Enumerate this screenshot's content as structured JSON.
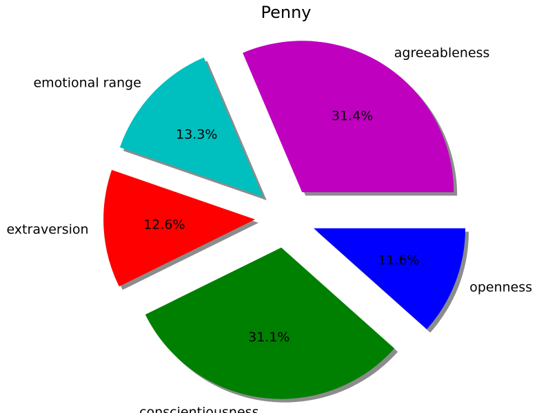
{
  "chart_data": {
    "type": "pie",
    "title": "Penny",
    "slices": [
      {
        "label": "agreeableness",
        "value": 31.4,
        "pct_label": "31.4%",
        "color": "#bf00bf",
        "exploded": true
      },
      {
        "label": "emotional range",
        "value": 13.3,
        "pct_label": "13.3%",
        "color": "#00bfbf",
        "exploded": true
      },
      {
        "label": "extraversion",
        "value": 12.6,
        "pct_label": "12.6%",
        "color": "#ff0000",
        "exploded": true
      },
      {
        "label": "conscientiousness",
        "value": 31.1,
        "pct_label": "31.1%",
        "color": "#008000",
        "exploded": true
      },
      {
        "label": "openness",
        "value": 11.6,
        "pct_label": "11.6%",
        "color": "#0000ff",
        "exploded": true
      }
    ],
    "start_angle_deg": 0,
    "direction": "counterclockwise",
    "shadow": true,
    "legend": "none"
  }
}
